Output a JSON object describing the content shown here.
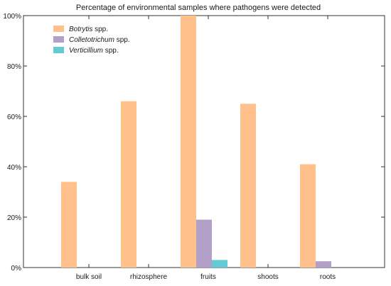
{
  "chart_data": {
    "type": "bar",
    "title": "Percentage of environmental samples where pathogens were detected",
    "xlabel": "",
    "ylabel": "",
    "categories": [
      "bulk soil",
      "rhizosphere",
      "fruits",
      "shoots",
      "roots"
    ],
    "ylim": [
      0,
      100
    ],
    "yticks": [
      0,
      20,
      40,
      60,
      80,
      100
    ],
    "ytick_suffix": "%",
    "grid": false,
    "legend_position": "top-left",
    "series": [
      {
        "genus": "Botrytis",
        "suffix": " spp.",
        "color": "#FFC08C",
        "values": [
          34,
          66,
          100,
          65,
          41
        ]
      },
      {
        "genus": "Colletotrichum",
        "suffix": " spp.",
        "color": "#B3A0C8",
        "values": [
          0,
          0,
          19,
          0,
          2.5
        ]
      },
      {
        "genus": "Verticillium",
        "suffix": " spp.",
        "color": "#62CBD3",
        "values": [
          0,
          0,
          3,
          0,
          0
        ]
      }
    ]
  }
}
